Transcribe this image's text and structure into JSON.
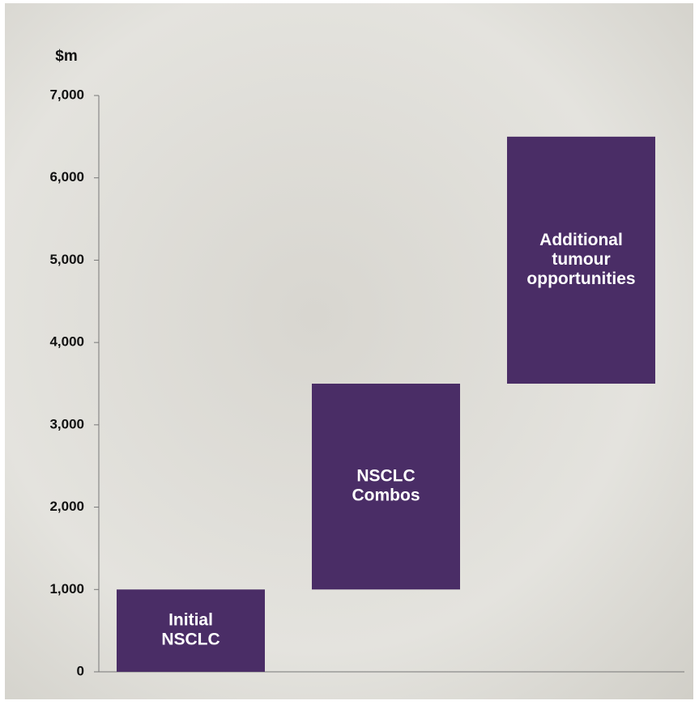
{
  "chart_data": {
    "type": "waterfall",
    "y_label": "$m",
    "categories": [
      [
        "Initial",
        "NSCLC"
      ],
      [
        "NSCLC",
        "Combos"
      ],
      [
        "Additional",
        "tumour",
        "opportunities"
      ]
    ],
    "values": [
      1000,
      2500,
      3000
    ],
    "color": "#4a2d66",
    "ylim": [
      0,
      7000
    ],
    "yticks": [
      0,
      {
        "value": 1000,
        "label": "1,000"
      },
      {
        "value": 2000,
        "label": "2,000"
      },
      {
        "value": 3000,
        "label": "3,000"
      },
      {
        "value": 4000,
        "label": "4,000"
      },
      {
        "value": 5000,
        "label": "5,000"
      },
      {
        "value": 6000,
        "label": "6,000"
      },
      {
        "value": 7000,
        "label": "7,000"
      }
    ]
  }
}
